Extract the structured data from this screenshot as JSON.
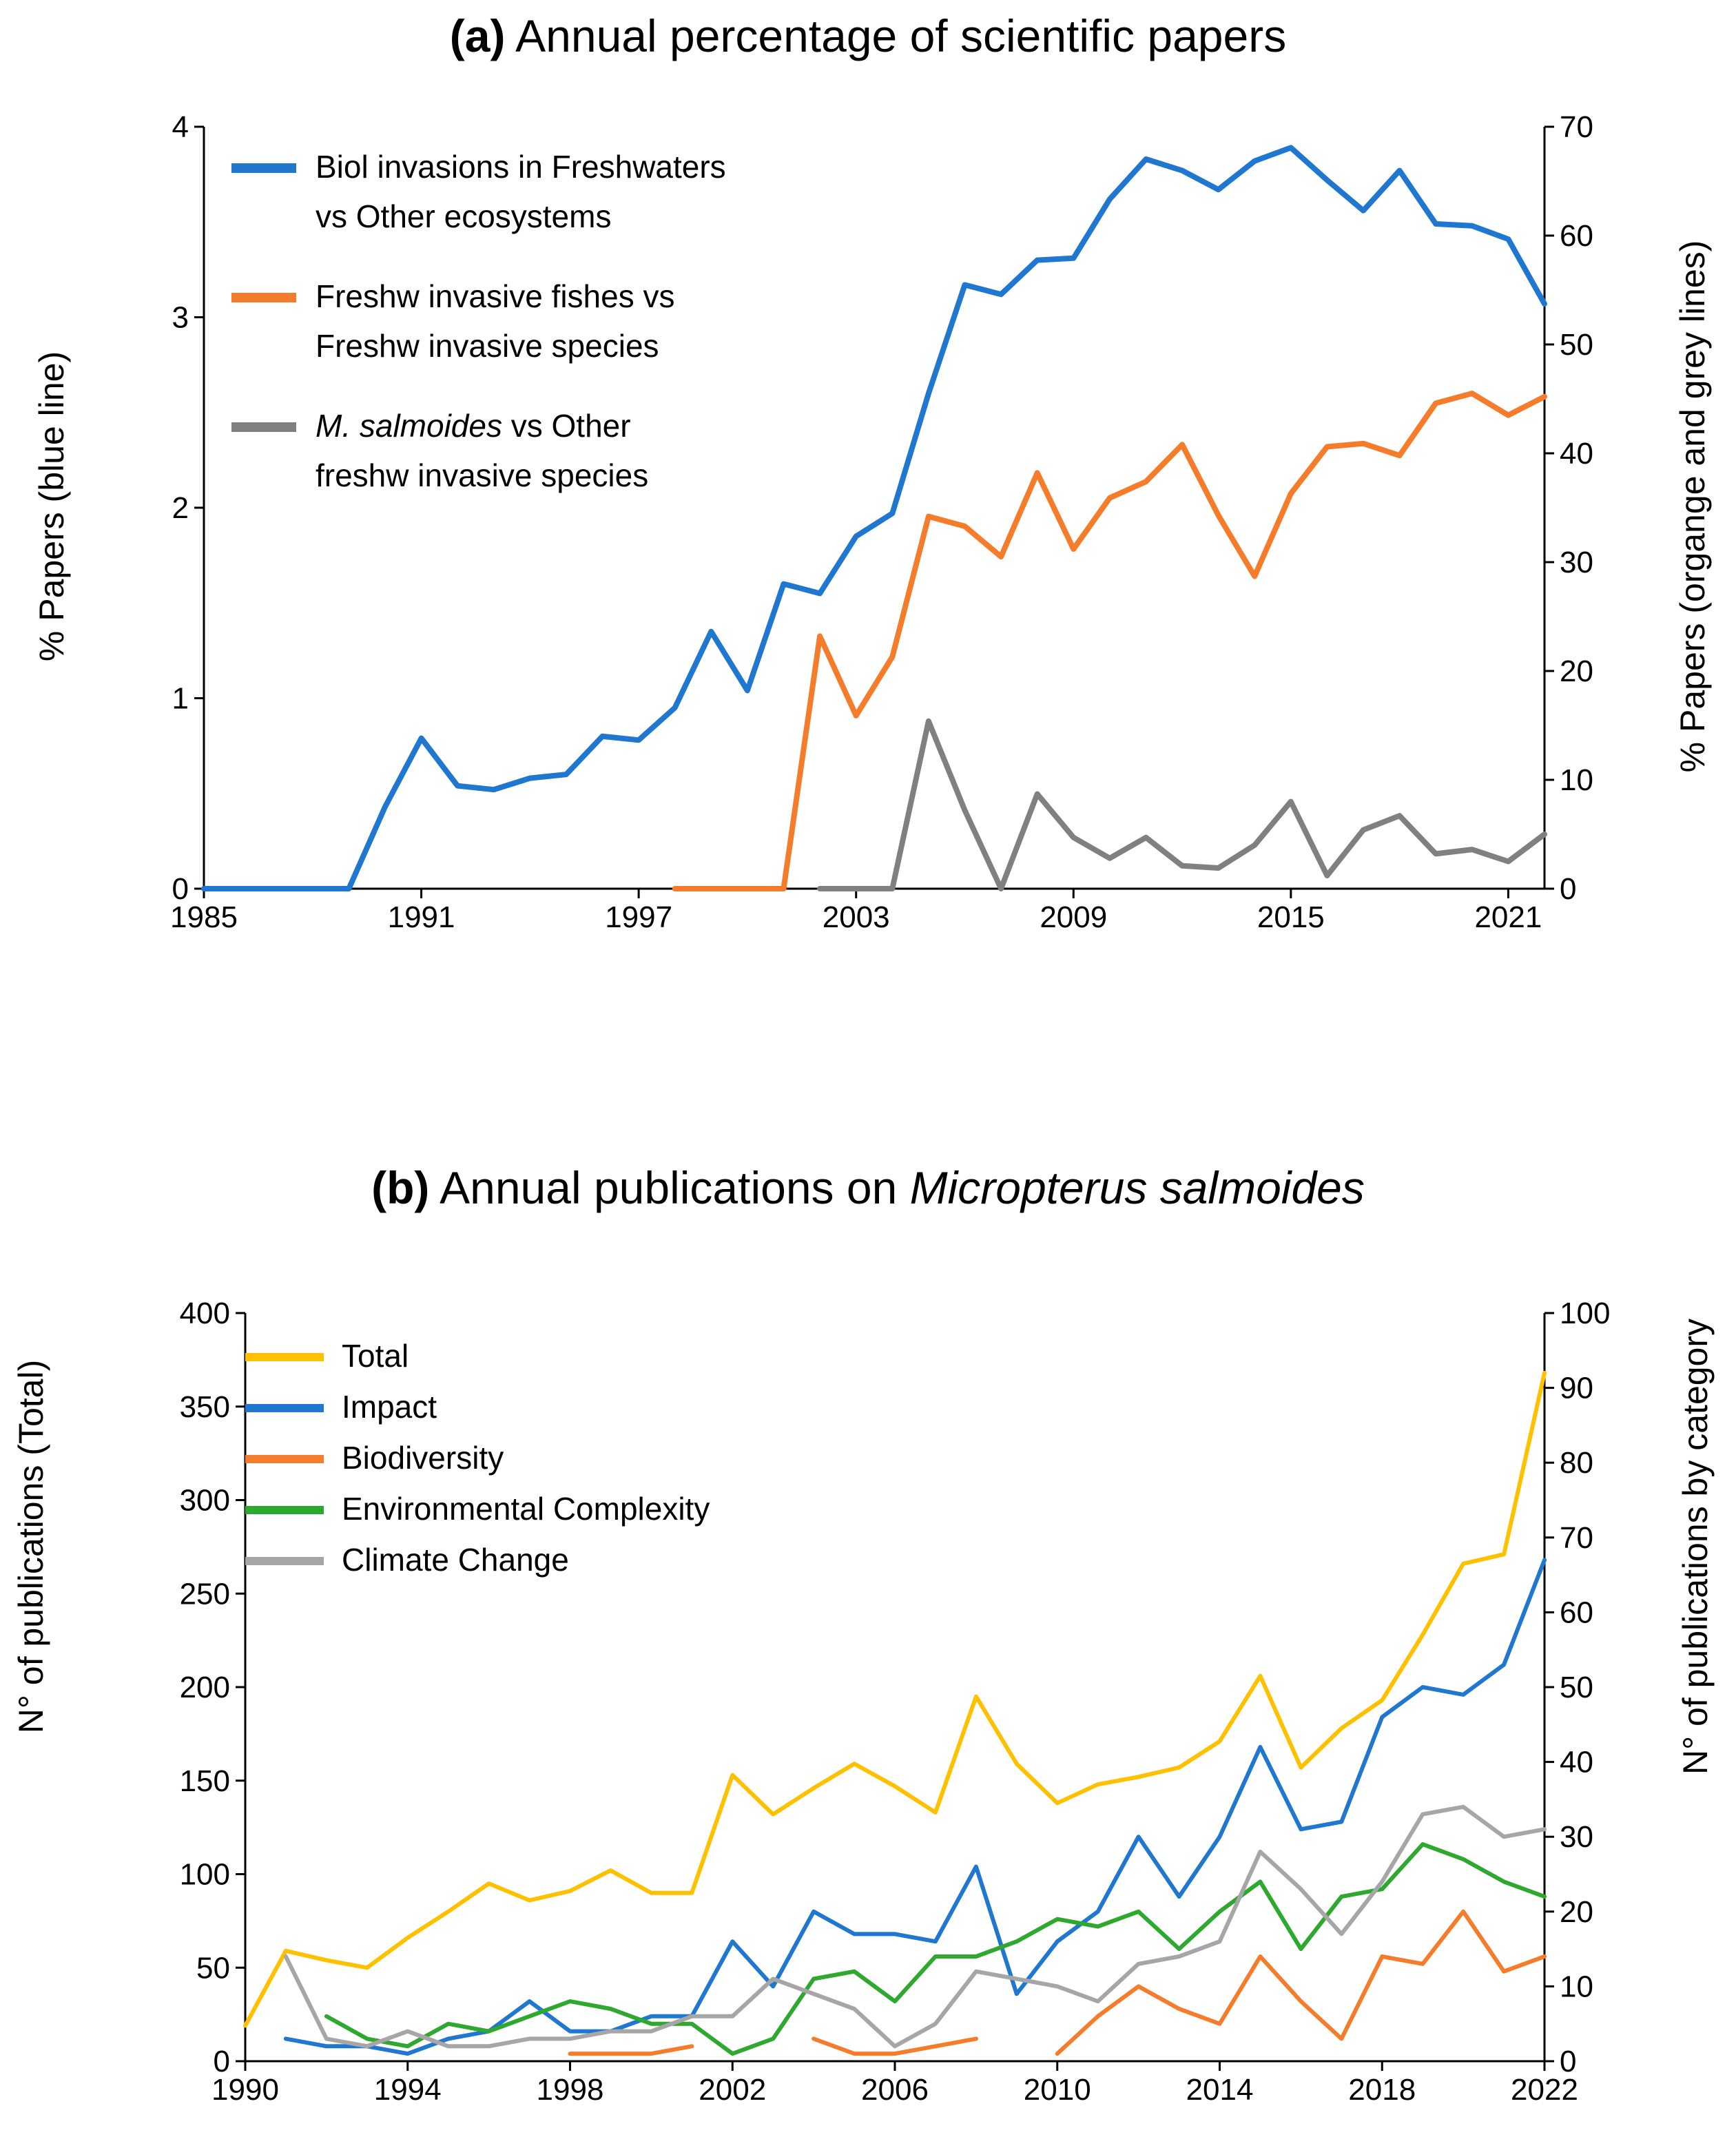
{
  "panel_a": {
    "title_prefix": "(a)",
    "title_text": "Annual percentage of scientific papers",
    "ylabel_left": "% Papers (blue line)",
    "ylabel_right": "% Papers (organge and grey lines)",
    "legend": [
      {
        "lines": [
          "Biol invasions in Freshwaters",
          "vs Other ecosystems"
        ],
        "color": "#1f77d0"
      },
      {
        "lines": [
          "Freshw invasive fishes vs",
          "Freshw invasive species"
        ],
        "color": "#f57c2a"
      },
      {
        "italic": "M. salmoides",
        "lines": [
          " vs Other",
          "freshw invasive species"
        ],
        "color": "#808080"
      }
    ]
  },
  "panel_b": {
    "title_prefix": "(b)",
    "title_text": "Annual publications on ",
    "title_italic": "Micropterus salmoides",
    "ylabel_left": "N° of publications (Total)",
    "ylabel_right": "N° of publications by category",
    "legend": [
      {
        "label": "Total",
        "color": "#ffc000"
      },
      {
        "label": "Impact",
        "color": "#1f77d0"
      },
      {
        "label": "Biodiversity",
        "color": "#f57c2a"
      },
      {
        "label": "Environmental Complexity",
        "color": "#2ea82e"
      },
      {
        "label": "Climate Change",
        "color": "#a6a6a6"
      }
    ]
  },
  "chart_data": [
    {
      "type": "line",
      "title": "(a) Annual percentage of scientific papers",
      "xlabel": "",
      "ylabel": "% Papers (blue line)",
      "y2label": "% Papers (organge and grey lines)",
      "xlim": [
        1985,
        2022
      ],
      "xticks": [
        1985,
        1991,
        1997,
        2003,
        2009,
        2015,
        2021
      ],
      "ylim": [
        0,
        4
      ],
      "yticks": [
        0,
        1,
        2,
        3,
        4
      ],
      "y2lim": [
        0,
        70
      ],
      "y2ticks": [
        0,
        10,
        20,
        30,
        40,
        50,
        60,
        70
      ],
      "legend_position": "top-left",
      "series": [
        {
          "name": "Biol invasions in Freshwaters vs Other ecosystems",
          "axis": "left",
          "color": "#1f77d0",
          "x": [
            1985,
            1986,
            1987,
            1988,
            1989,
            1990,
            1991,
            1992,
            1993,
            1994,
            1995,
            1996,
            1997,
            1998,
            1999,
            2000,
            2001,
            2002,
            2003,
            2004,
            2005,
            2006,
            2007,
            2008,
            2009,
            2010,
            2011,
            2012,
            2013,
            2014,
            2015,
            2016,
            2017,
            2018,
            2019,
            2020,
            2021,
            2022
          ],
          "y": [
            0,
            0,
            0,
            0,
            0,
            0.43,
            0.79,
            0.54,
            0.52,
            0.58,
            0.6,
            0.8,
            0.78,
            0.95,
            1.35,
            1.04,
            1.6,
            1.55,
            1.85,
            1.97,
            2.6,
            3.17,
            3.12,
            3.3,
            3.31,
            3.62,
            3.83,
            3.77,
            3.67,
            3.82,
            3.89,
            3.72,
            3.56,
            3.77,
            3.49,
            3.48,
            3.41,
            3.07
          ]
        },
        {
          "name": "Freshw invasive fishes vs Freshw invasive species",
          "axis": "right",
          "color": "#f57c2a",
          "x": [
            1998,
            1999,
            2000,
            2001,
            2002,
            2003,
            2004,
            2005,
            2006,
            2007,
            2008,
            2009,
            2010,
            2011,
            2012,
            2013,
            2014,
            2015,
            2016,
            2017,
            2018,
            2019,
            2020,
            2021,
            2022
          ],
          "y": [
            0,
            0,
            0,
            0,
            23.2,
            15.9,
            21.3,
            34.2,
            33.3,
            30.5,
            38.2,
            31.2,
            35.9,
            37.4,
            40.8,
            34.3,
            28.7,
            36.3,
            40.6,
            40.9,
            39.8,
            44.6,
            45.5,
            43.5,
            45.2
          ]
        },
        {
          "name": "M. salmoides vs Other freshw invasive species",
          "axis": "right",
          "color": "#808080",
          "x": [
            2002,
            2003,
            2004,
            2005,
            2006,
            2007,
            2008,
            2009,
            2010,
            2011,
            2012,
            2013,
            2014,
            2015,
            2016,
            2017,
            2018,
            2019,
            2020,
            2021,
            2022
          ],
          "y": [
            0,
            0,
            0,
            15.4,
            7.2,
            0,
            8.7,
            4.7,
            2.8,
            4.7,
            2.1,
            1.9,
            4.0,
            8.0,
            1.2,
            5.4,
            6.7,
            3.2,
            3.6,
            2.5,
            5.0
          ]
        }
      ]
    },
    {
      "type": "line",
      "title": "(b) Annual publications on Micropterus salmoides",
      "xlabel": "",
      "ylabel": "N° of publications (Total)",
      "y2label": "N° of publications by category",
      "xlim": [
        1990,
        2022
      ],
      "xticks": [
        1990,
        1994,
        1998,
        2002,
        2006,
        2010,
        2014,
        2018,
        2022
      ],
      "ylim": [
        0,
        400
      ],
      "yticks": [
        0,
        50,
        100,
        150,
        200,
        250,
        300,
        350,
        400
      ],
      "y2lim": [
        0,
        100
      ],
      "y2ticks": [
        0,
        10,
        20,
        30,
        40,
        50,
        60,
        70,
        80,
        90,
        100
      ],
      "legend_position": "top-left",
      "series": [
        {
          "name": "Total",
          "axis": "left",
          "color": "#ffc000",
          "x": [
            1990,
            1991,
            1992,
            1993,
            1994,
            1995,
            1996,
            1997,
            1998,
            1999,
            2000,
            2001,
            2002,
            2003,
            2004,
            2005,
            2006,
            2007,
            2008,
            2009,
            2010,
            2011,
            2012,
            2013,
            2014,
            2015,
            2016,
            2017,
            2018,
            2019,
            2020,
            2021,
            2022
          ],
          "y": [
            19,
            59,
            54,
            50,
            66,
            80,
            95,
            86,
            91,
            102,
            90,
            90,
            153,
            132,
            146,
            159,
            147,
            133,
            195,
            159,
            138,
            148,
            152,
            157,
            171,
            206,
            157,
            178,
            193,
            228,
            266,
            271,
            368
          ]
        },
        {
          "name": "Impact",
          "axis": "right",
          "color": "#1f77d0",
          "x": [
            1991,
            1992,
            1993,
            1994,
            1995,
            1996,
            1997,
            1998,
            1999,
            2000,
            2001,
            2002,
            2003,
            2004,
            2005,
            2006,
            2007,
            2008,
            2009,
            2010,
            2011,
            2012,
            2013,
            2014,
            2015,
            2016,
            2017,
            2018,
            2019,
            2020,
            2021,
            2022
          ],
          "y": [
            3,
            2,
            2,
            1,
            3,
            4,
            8,
            4,
            4,
            6,
            6,
            16,
            10,
            20,
            17,
            17,
            16,
            26,
            9,
            16,
            20,
            30,
            22,
            30,
            42,
            31,
            32,
            46,
            50,
            49,
            53,
            67
          ]
        },
        {
          "name": "Biodiversity",
          "axis": "right",
          "color": "#f57c2a",
          "segments": [
            {
              "x": [
                1998,
                1999,
                2000,
                2001
              ],
              "y": [
                1,
                1,
                1,
                2
              ]
            },
            {
              "x": [
                2004,
                2005,
                2006,
                2007,
                2008
              ],
              "y": [
                3,
                1,
                1,
                2,
                3
              ]
            },
            {
              "x": [
                2010,
                2011,
                2012,
                2013,
                2014,
                2015,
                2016,
                2017,
                2018,
                2019,
                2020,
                2021,
                2022
              ],
              "y": [
                1,
                6,
                10,
                7,
                5,
                14,
                8,
                3,
                14,
                13,
                20,
                12,
                14
              ]
            }
          ]
        },
        {
          "name": "Environmental Complexity",
          "axis": "right",
          "color": "#2ea82e",
          "x": [
            1992,
            1993,
            1994,
            1995,
            1996,
            1997,
            1998,
            1999,
            2000,
            2001,
            2002,
            2003,
            2004,
            2005,
            2006,
            2007,
            2008,
            2009,
            2010,
            2011,
            2012,
            2013,
            2014,
            2015,
            2016,
            2017,
            2018,
            2019,
            2020,
            2021,
            2022
          ],
          "y": [
            6,
            3,
            2,
            5,
            4,
            6,
            8,
            7,
            5,
            5,
            1,
            3,
            11,
            12,
            8,
            14,
            14,
            16,
            19,
            18,
            20,
            15,
            20,
            24,
            15,
            22,
            23,
            29,
            27,
            24,
            22
          ]
        },
        {
          "name": "Climate Change",
          "axis": "right",
          "color": "#a6a6a6",
          "x": [
            1991,
            1992,
            1993,
            1994,
            1995,
            1996,
            1997,
            1998,
            1999,
            2000,
            2001,
            2002,
            2003,
            2004,
            2005,
            2006,
            2007,
            2008,
            2009,
            2010,
            2011,
            2012,
            2013,
            2014,
            2015,
            2016,
            2017,
            2018,
            2019,
            2020,
            2021,
            2022
          ],
          "y": [
            14,
            3,
            2,
            4,
            2,
            2,
            3,
            3,
            4,
            4,
            6,
            6,
            11,
            9,
            7,
            2,
            5,
            12,
            11,
            10,
            8,
            13,
            14,
            16,
            28,
            23,
            17,
            24,
            33,
            34,
            30,
            31
          ]
        }
      ]
    }
  ]
}
